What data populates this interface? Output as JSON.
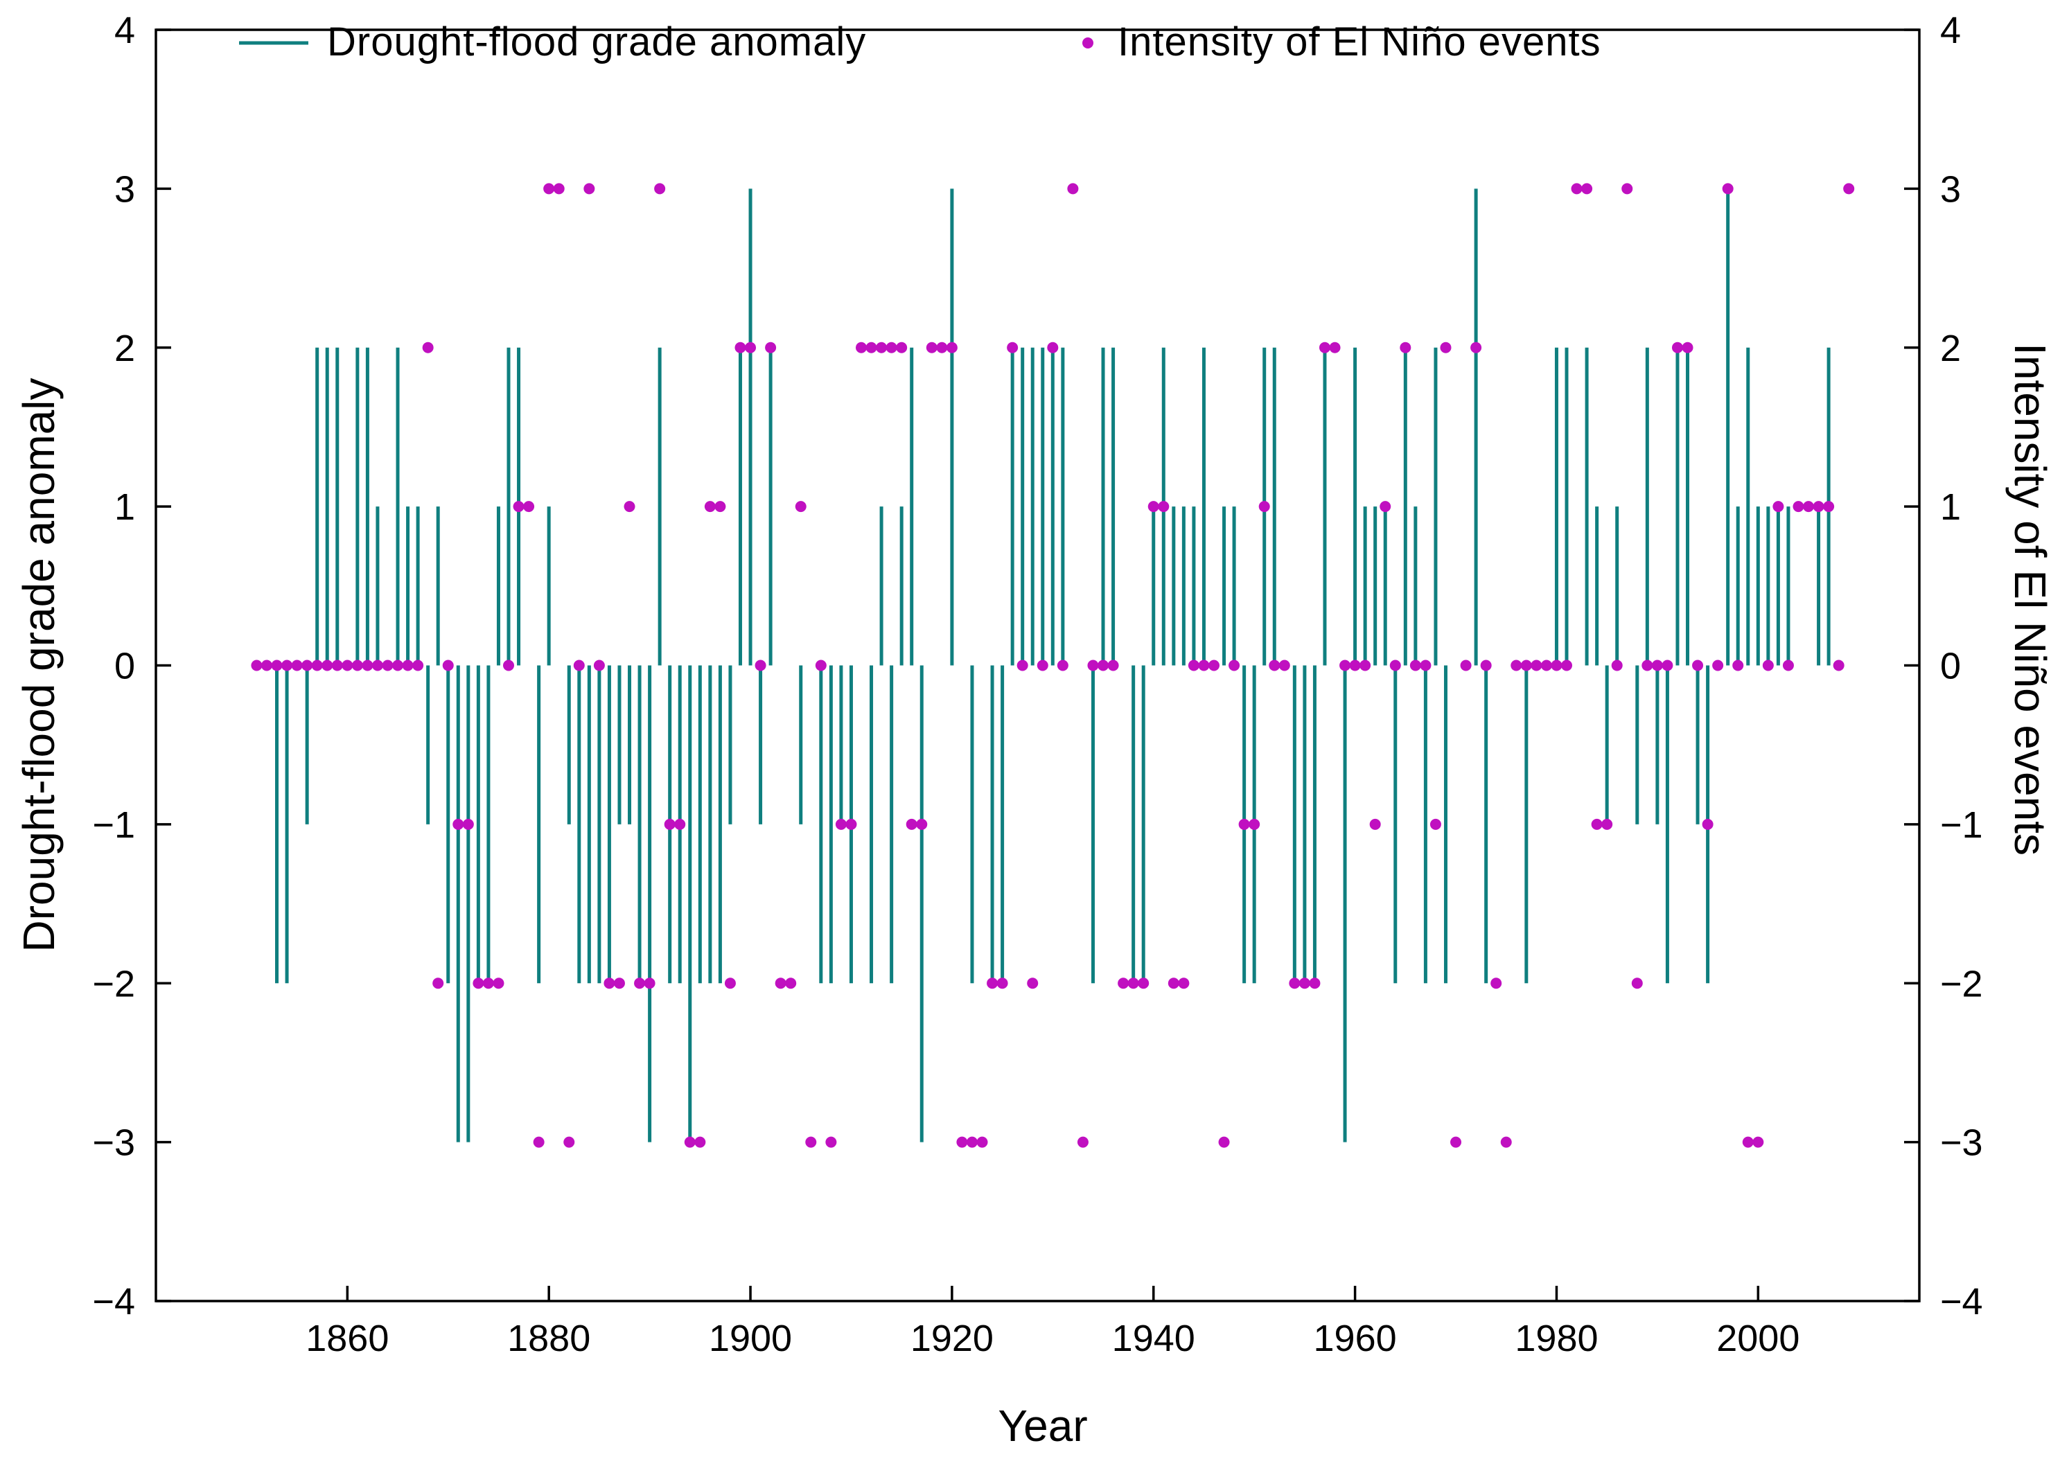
{
  "chart_data": {
    "type": "bar",
    "xlabel": "Year",
    "ylabel_left": "Drought-flood grade anomaly",
    "ylabel_right": "Intensity of El Niño events",
    "xlim": [
      1841,
      2016
    ],
    "ylim": [
      -4,
      4
    ],
    "x_ticks": [
      "1860",
      "1880",
      "1900",
      "1920",
      "1940",
      "1960",
      "1980",
      "2000"
    ],
    "y_ticks": [
      "4",
      "3",
      "2",
      "1",
      "0",
      "−1",
      "−2",
      "−3",
      "−4"
    ],
    "legend": [
      {
        "label": "Drought-flood grade anomaly",
        "marker": "line",
        "color": "#0f7f7f"
      },
      {
        "label": "Intensity of El Niño events",
        "marker": "dot",
        "color": "#c010c0"
      }
    ],
    "series": [
      {
        "name": "Drought-flood grade anomaly",
        "axis": "left",
        "points": [
          [
            1853,
            -2
          ],
          [
            1854,
            -2
          ],
          [
            1856,
            -1
          ],
          [
            1857,
            2
          ],
          [
            1858,
            2
          ],
          [
            1859,
            2
          ],
          [
            1861,
            2
          ],
          [
            1862,
            2
          ],
          [
            1863,
            1
          ],
          [
            1865,
            2
          ],
          [
            1866,
            1
          ],
          [
            1867,
            1
          ],
          [
            1868,
            -1
          ],
          [
            1869,
            1
          ],
          [
            1870,
            -2
          ],
          [
            1871,
            -3
          ],
          [
            1872,
            -3
          ],
          [
            1873,
            -2
          ],
          [
            1874,
            -2
          ],
          [
            1875,
            1
          ],
          [
            1876,
            2
          ],
          [
            1877,
            2
          ],
          [
            1879,
            -2
          ],
          [
            1880,
            1
          ],
          [
            1882,
            -1
          ],
          [
            1883,
            -2
          ],
          [
            1884,
            -2
          ],
          [
            1885,
            -2
          ],
          [
            1886,
            -2
          ],
          [
            1887,
            -1
          ],
          [
            1888,
            -1
          ],
          [
            1889,
            -2
          ],
          [
            1890,
            -3
          ],
          [
            1891,
            2
          ],
          [
            1892,
            -2
          ],
          [
            1893,
            -2
          ],
          [
            1894,
            -3
          ],
          [
            1895,
            -2
          ],
          [
            1896,
            -2
          ],
          [
            1897,
            -2
          ],
          [
            1898,
            -1
          ],
          [
            1899,
            2
          ],
          [
            1900,
            3
          ],
          [
            1901,
            -1
          ],
          [
            1902,
            2
          ],
          [
            1905,
            -1
          ],
          [
            1907,
            -2
          ],
          [
            1908,
            -2
          ],
          [
            1909,
            -1
          ],
          [
            1910,
            -2
          ],
          [
            1912,
            -2
          ],
          [
            1913,
            1
          ],
          [
            1914,
            -2
          ],
          [
            1915,
            1
          ],
          [
            1916,
            2
          ],
          [
            1917,
            -3
          ],
          [
            1920,
            3
          ],
          [
            1922,
            -2
          ],
          [
            1924,
            -2
          ],
          [
            1925,
            -2
          ],
          [
            1926,
            2
          ],
          [
            1927,
            2
          ],
          [
            1928,
            2
          ],
          [
            1929,
            2
          ],
          [
            1930,
            2
          ],
          [
            1931,
            2
          ],
          [
            1934,
            -2
          ],
          [
            1935,
            2
          ],
          [
            1936,
            2
          ],
          [
            1938,
            -2
          ],
          [
            1939,
            -2
          ],
          [
            1940,
            1
          ],
          [
            1941,
            2
          ],
          [
            1942,
            1
          ],
          [
            1943,
            1
          ],
          [
            1944,
            1
          ],
          [
            1945,
            2
          ],
          [
            1947,
            1
          ],
          [
            1948,
            1
          ],
          [
            1949,
            -2
          ],
          [
            1950,
            -2
          ],
          [
            1951,
            2
          ],
          [
            1952,
            2
          ],
          [
            1954,
            -2
          ],
          [
            1955,
            -2
          ],
          [
            1956,
            -2
          ],
          [
            1957,
            2
          ],
          [
            1959,
            -3
          ],
          [
            1960,
            2
          ],
          [
            1961,
            1
          ],
          [
            1962,
            1
          ],
          [
            1963,
            1
          ],
          [
            1964,
            -2
          ],
          [
            1965,
            2
          ],
          [
            1966,
            1
          ],
          [
            1967,
            -2
          ],
          [
            1968,
            2
          ],
          [
            1969,
            -2
          ],
          [
            1972,
            3
          ],
          [
            1973,
            -2
          ],
          [
            1977,
            -2
          ],
          [
            1980,
            2
          ],
          [
            1981,
            2
          ],
          [
            1983,
            2
          ],
          [
            1984,
            1
          ],
          [
            1985,
            -1
          ],
          [
            1986,
            1
          ],
          [
            1988,
            -1
          ],
          [
            1989,
            2
          ],
          [
            1990,
            -1
          ],
          [
            1991,
            -2
          ],
          [
            1992,
            2
          ],
          [
            1993,
            2
          ],
          [
            1994,
            -1
          ],
          [
            1995,
            -2
          ],
          [
            1997,
            3
          ],
          [
            1998,
            1
          ],
          [
            1999,
            2
          ],
          [
            2000,
            1
          ],
          [
            2001,
            1
          ],
          [
            2002,
            1
          ],
          [
            2003,
            1
          ],
          [
            2006,
            1
          ],
          [
            2007,
            2
          ]
        ]
      },
      {
        "name": "Intensity of El Niño events",
        "axis": "right",
        "points": [
          [
            1851,
            0
          ],
          [
            1852,
            0
          ],
          [
            1853,
            0
          ],
          [
            1854,
            0
          ],
          [
            1855,
            0
          ],
          [
            1856,
            0
          ],
          [
            1857,
            0
          ],
          [
            1858,
            0
          ],
          [
            1859,
            0
          ],
          [
            1860,
            0
          ],
          [
            1861,
            0
          ],
          [
            1862,
            0
          ],
          [
            1863,
            0
          ],
          [
            1864,
            0
          ],
          [
            1865,
            0
          ],
          [
            1866,
            0
          ],
          [
            1867,
            0
          ],
          [
            1868,
            2
          ],
          [
            1869,
            -2
          ],
          [
            1870,
            0
          ],
          [
            1871,
            -1
          ],
          [
            1872,
            -1
          ],
          [
            1873,
            -2
          ],
          [
            1874,
            -2
          ],
          [
            1875,
            -2
          ],
          [
            1876,
            0
          ],
          [
            1877,
            1
          ],
          [
            1878,
            1
          ],
          [
            1879,
            -3
          ],
          [
            1880,
            3
          ],
          [
            1881,
            3
          ],
          [
            1882,
            -3
          ],
          [
            1883,
            0
          ],
          [
            1884,
            3
          ],
          [
            1885,
            0
          ],
          [
            1886,
            -2
          ],
          [
            1887,
            -2
          ],
          [
            1888,
            1
          ],
          [
            1889,
            -2
          ],
          [
            1890,
            -2
          ],
          [
            1891,
            3
          ],
          [
            1892,
            -1
          ],
          [
            1893,
            -1
          ],
          [
            1894,
            -3
          ],
          [
            1895,
            -3
          ],
          [
            1896,
            1
          ],
          [
            1897,
            1
          ],
          [
            1898,
            -2
          ],
          [
            1899,
            2
          ],
          [
            1900,
            2
          ],
          [
            1901,
            0
          ],
          [
            1902,
            2
          ],
          [
            1903,
            -2
          ],
          [
            1904,
            -2
          ],
          [
            1905,
            1
          ],
          [
            1906,
            -3
          ],
          [
            1907,
            0
          ],
          [
            1908,
            -3
          ],
          [
            1909,
            -1
          ],
          [
            1910,
            -1
          ],
          [
            1911,
            2
          ],
          [
            1912,
            2
          ],
          [
            1913,
            2
          ],
          [
            1914,
            2
          ],
          [
            1915,
            2
          ],
          [
            1916,
            -1
          ],
          [
            1917,
            -1
          ],
          [
            1918,
            2
          ],
          [
            1919,
            2
          ],
          [
            1920,
            2
          ],
          [
            1921,
            -3
          ],
          [
            1922,
            -3
          ],
          [
            1923,
            -3
          ],
          [
            1924,
            -2
          ],
          [
            1925,
            -2
          ],
          [
            1926,
            2
          ],
          [
            1927,
            0
          ],
          [
            1928,
            -2
          ],
          [
            1929,
            0
          ],
          [
            1930,
            2
          ],
          [
            1931,
            0
          ],
          [
            1932,
            3
          ],
          [
            1933,
            -3
          ],
          [
            1934,
            0
          ],
          [
            1935,
            0
          ],
          [
            1936,
            0
          ],
          [
            1937,
            -2
          ],
          [
            1938,
            -2
          ],
          [
            1939,
            -2
          ],
          [
            1940,
            1
          ],
          [
            1941,
            1
          ],
          [
            1942,
            -2
          ],
          [
            1943,
            -2
          ],
          [
            1944,
            0
          ],
          [
            1945,
            0
          ],
          [
            1946,
            0
          ],
          [
            1947,
            -3
          ],
          [
            1948,
            0
          ],
          [
            1949,
            -1
          ],
          [
            1950,
            -1
          ],
          [
            1951,
            1
          ],
          [
            1952,
            0
          ],
          [
            1953,
            0
          ],
          [
            1954,
            -2
          ],
          [
            1955,
            -2
          ],
          [
            1956,
            -2
          ],
          [
            1957,
            2
          ],
          [
            1958,
            2
          ],
          [
            1959,
            0
          ],
          [
            1960,
            0
          ],
          [
            1961,
            0
          ],
          [
            1962,
            -1
          ],
          [
            1963,
            1
          ],
          [
            1964,
            0
          ],
          [
            1965,
            2
          ],
          [
            1966,
            0
          ],
          [
            1967,
            0
          ],
          [
            1968,
            -1
          ],
          [
            1969,
            2
          ],
          [
            1970,
            -3
          ],
          [
            1971,
            0
          ],
          [
            1972,
            2
          ],
          [
            1973,
            0
          ],
          [
            1974,
            -2
          ],
          [
            1975,
            -3
          ],
          [
            1976,
            0
          ],
          [
            1977,
            0
          ],
          [
            1978,
            0
          ],
          [
            1979,
            0
          ],
          [
            1980,
            0
          ],
          [
            1981,
            0
          ],
          [
            1982,
            3
          ],
          [
            1983,
            3
          ],
          [
            1984,
            -1
          ],
          [
            1985,
            -1
          ],
          [
            1986,
            0
          ],
          [
            1987,
            3
          ],
          [
            1988,
            -2
          ],
          [
            1989,
            0
          ],
          [
            1990,
            0
          ],
          [
            1991,
            0
          ],
          [
            1992,
            2
          ],
          [
            1993,
            2
          ],
          [
            1994,
            0
          ],
          [
            1995,
            -1
          ],
          [
            1996,
            0
          ],
          [
            1997,
            3
          ],
          [
            1998,
            0
          ],
          [
            1999,
            -3
          ],
          [
            2000,
            -3
          ],
          [
            2001,
            0
          ],
          [
            2002,
            1
          ],
          [
            2003,
            0
          ],
          [
            2004,
            1
          ],
          [
            2005,
            1
          ],
          [
            2006,
            1
          ],
          [
            2007,
            1
          ],
          [
            2008,
            0
          ],
          [
            2009,
            3
          ]
        ]
      }
    ]
  }
}
